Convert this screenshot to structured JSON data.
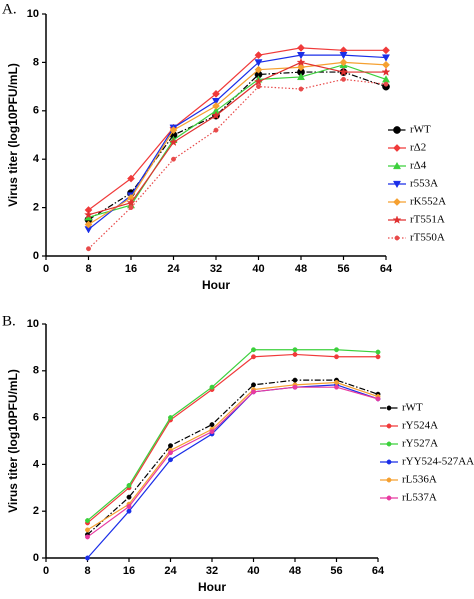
{
  "chart_data": [
    {
      "type": "line",
      "panel_label": "A.",
      "y_label": "Virus titer (log10PFU/mL)",
      "x_label": "Hour",
      "x": [
        8,
        16,
        24,
        32,
        40,
        48,
        56,
        64
      ],
      "xlim": [
        0,
        64
      ],
      "xticks": [
        0,
        8,
        16,
        24,
        32,
        40,
        48,
        56,
        64
      ],
      "ylim": [
        0,
        10
      ],
      "yticks": [
        0,
        2,
        4,
        6,
        8,
        10
      ],
      "series": [
        {
          "name": "rWT",
          "color": "#000000",
          "marker": "circle",
          "dash": "dashdot",
          "values": [
            1.5,
            2.6,
            5.0,
            5.8,
            7.5,
            7.6,
            7.6,
            7.0
          ]
        },
        {
          "name": "rΔ2",
          "color": "#f03a3a",
          "marker": "diamond",
          "dash": "solid",
          "values": [
            1.9,
            3.2,
            5.3,
            6.7,
            8.3,
            8.6,
            8.5,
            8.5
          ]
        },
        {
          "name": "rΔ4",
          "color": "#3cd03c",
          "marker": "triangle",
          "dash": "solid",
          "values": [
            1.6,
            2.1,
            4.8,
            6.0,
            7.3,
            7.4,
            7.9,
            7.3
          ]
        },
        {
          "name": "r553A",
          "color": "#1a2ee8",
          "marker": "triangle-down",
          "dash": "solid",
          "values": [
            1.1,
            2.5,
            5.3,
            6.4,
            8.0,
            8.3,
            8.3,
            8.2
          ]
        },
        {
          "name": "rK552A",
          "color": "#f5a030",
          "marker": "diamond",
          "dash": "solid",
          "values": [
            1.3,
            2.4,
            5.2,
            6.2,
            7.7,
            7.8,
            8.0,
            7.9
          ]
        },
        {
          "name": "rT551A",
          "color": "#e03030",
          "marker": "star",
          "dash": "solid",
          "values": [
            1.7,
            2.2,
            4.7,
            5.8,
            7.2,
            8.0,
            7.6,
            7.6
          ]
        },
        {
          "name": "rT550A",
          "color": "#e84a4a",
          "marker": "dot",
          "dash": "dotted",
          "values": [
            0.3,
            2.0,
            4.0,
            5.2,
            7.0,
            6.9,
            7.3,
            7.1
          ]
        }
      ]
    },
    {
      "type": "line",
      "panel_label": "B.",
      "y_label": "Virus titer (log10PFU/mL)",
      "x_label": "Hour",
      "x": [
        8,
        16,
        24,
        32,
        40,
        48,
        56,
        64
      ],
      "xlim": [
        0,
        64
      ],
      "xticks": [
        0,
        8,
        16,
        24,
        32,
        40,
        48,
        56,
        64
      ],
      "ylim": [
        0,
        10
      ],
      "yticks": [
        0,
        2,
        4,
        6,
        8,
        10
      ],
      "series": [
        {
          "name": "rWT",
          "color": "#000000",
          "marker": "dot",
          "dash": "dashdot",
          "values": [
            1.0,
            2.6,
            4.8,
            5.7,
            7.4,
            7.6,
            7.6,
            7.0
          ]
        },
        {
          "name": "rY524A",
          "color": "#f03a3a",
          "marker": "dot",
          "dash": "solid",
          "values": [
            1.5,
            3.0,
            5.9,
            7.2,
            8.6,
            8.7,
            8.6,
            8.6
          ]
        },
        {
          "name": "rY527A",
          "color": "#3cd03c",
          "marker": "dot",
          "dash": "solid",
          "values": [
            1.6,
            3.1,
            6.0,
            7.3,
            8.9,
            8.9,
            8.9,
            8.8
          ]
        },
        {
          "name": "rYY524-527AA",
          "color": "#1a2ee8",
          "marker": "dot",
          "dash": "solid",
          "values": [
            0.0,
            2.0,
            4.2,
            5.3,
            7.1,
            7.3,
            7.4,
            6.8
          ]
        },
        {
          "name": "rL536A",
          "color": "#f5a030",
          "marker": "dot",
          "dash": "solid",
          "values": [
            1.2,
            2.3,
            4.6,
            5.5,
            7.2,
            7.4,
            7.5,
            6.9
          ]
        },
        {
          "name": "rL537A",
          "color": "#e83aa0",
          "marker": "dot",
          "dash": "solid",
          "values": [
            0.9,
            2.2,
            4.5,
            5.4,
            7.1,
            7.3,
            7.3,
            6.8
          ]
        }
      ]
    }
  ]
}
